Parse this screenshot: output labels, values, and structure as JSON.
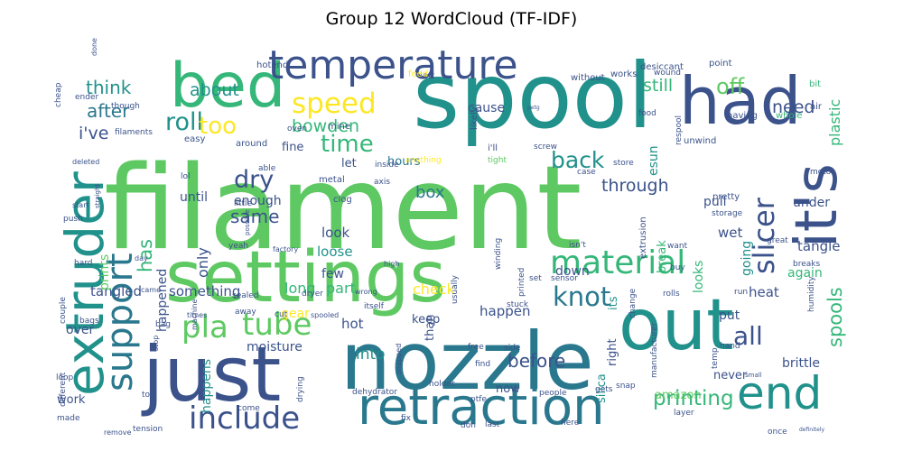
{
  "chart_data": {
    "type": "wordcloud",
    "title": "Group 12 WordCloud (TF-IDF)",
    "palette": "viridis",
    "background": "#ffffff",
    "words": [
      {
        "text": "filament",
        "weight": 100,
        "color": "#5ec962"
      },
      {
        "text": "spool",
        "weight": 86,
        "color": "#21918c"
      },
      {
        "text": "nozzle",
        "weight": 72,
        "color": "#2a788e"
      },
      {
        "text": "settings",
        "weight": 66,
        "color": "#5ec962"
      },
      {
        "text": "just",
        "weight": 66,
        "color": "#3b528b"
      },
      {
        "text": "out",
        "weight": 64,
        "color": "#21918c"
      },
      {
        "text": "had",
        "weight": 62,
        "color": "#3b528b"
      },
      {
        "text": "bed",
        "weight": 60,
        "color": "#35b779"
      },
      {
        "text": "extruder",
        "weight": 52,
        "color": "#21918c"
      },
      {
        "text": "it's",
        "weight": 52,
        "color": "#3b528b"
      },
      {
        "text": "retraction",
        "weight": 50,
        "color": "#2a788e"
      },
      {
        "text": "end",
        "weight": 45,
        "color": "#21918c"
      },
      {
        "text": "temperature",
        "weight": 40,
        "color": "#3b528b"
      },
      {
        "text": "support",
        "weight": 34,
        "color": "#2a788e"
      },
      {
        "text": "material",
        "weight": 32,
        "color": "#35b779"
      },
      {
        "text": "include",
        "weight": 30,
        "color": "#3b528b"
      },
      {
        "text": "tube",
        "weight": 29,
        "color": "#5ec962"
      },
      {
        "text": "slicer",
        "weight": 28,
        "color": "#3b528b"
      },
      {
        "text": "pla",
        "weight": 28,
        "color": "#5ec962"
      },
      {
        "text": "speed",
        "weight": 27,
        "color": "#fde725"
      },
      {
        "text": "knot",
        "weight": 25,
        "color": "#2a788e"
      },
      {
        "text": "all",
        "weight": 24,
        "color": "#3b528b"
      },
      {
        "text": "roll",
        "weight": 23,
        "color": "#21918c"
      },
      {
        "text": "dry",
        "weight": 23,
        "color": "#3b528b"
      },
      {
        "text": "too",
        "weight": 23,
        "color": "#fde725"
      },
      {
        "text": "time",
        "weight": 22,
        "color": "#35b779"
      },
      {
        "text": "back",
        "weight": 21,
        "color": "#21918c"
      },
      {
        "text": "off",
        "weight": 21,
        "color": "#5ec962"
      },
      {
        "text": "printing",
        "weight": 20,
        "color": "#35b779"
      },
      {
        "text": "spools",
        "weight": 19,
        "color": "#35b779"
      },
      {
        "text": "has",
        "weight": 19,
        "color": "#35b779"
      },
      {
        "text": "same",
        "weight": 18,
        "color": "#3b528b"
      },
      {
        "text": "after",
        "weight": 18,
        "color": "#2a788e"
      },
      {
        "text": "think",
        "weight": 18,
        "color": "#21918c"
      },
      {
        "text": "bowden",
        "weight": 17,
        "color": "#35b779"
      },
      {
        "text": "about",
        "weight": 17,
        "color": "#21918c"
      },
      {
        "text": "i've",
        "weight": 17,
        "color": "#3b528b"
      },
      {
        "text": "before",
        "weight": 17,
        "color": "#3b528b"
      },
      {
        "text": "through",
        "weight": 16,
        "color": "#3b528b"
      },
      {
        "text": "need",
        "weight": 16,
        "color": "#3b528b"
      },
      {
        "text": "still",
        "weight": 16,
        "color": "#35b779"
      },
      {
        "text": "plastic",
        "weight": 14,
        "color": "#35b779"
      },
      {
        "text": "into",
        "weight": 15,
        "color": "#21918c"
      },
      {
        "text": "box",
        "weight": 15,
        "color": "#2a788e"
      },
      {
        "text": "only",
        "weight": 14,
        "color": "#3b528b"
      },
      {
        "text": "check",
        "weight": 14,
        "color": "#fde725"
      },
      {
        "text": "part",
        "weight": 14,
        "color": "#35b779"
      },
      {
        "text": "long",
        "weight": 14,
        "color": "#35b779"
      },
      {
        "text": "tangled",
        "weight": 13,
        "color": "#3b528b"
      },
      {
        "text": "something",
        "weight": 13,
        "color": "#3b528b"
      },
      {
        "text": "tangle",
        "weight": 13,
        "color": "#3b528b"
      },
      {
        "text": "wet",
        "weight": 13,
        "color": "#3b528b"
      },
      {
        "text": "heat",
        "weight": 13,
        "color": "#3b528b"
      },
      {
        "text": "again",
        "weight": 12,
        "color": "#35b779"
      },
      {
        "text": "going",
        "weight": 12,
        "color": "#21918c"
      },
      {
        "text": "looks",
        "weight": 12,
        "color": "#35b779"
      },
      {
        "text": "prints",
        "weight": 12,
        "color": "#5ec962"
      },
      {
        "text": "loose",
        "weight": 13,
        "color": "#21918c"
      },
      {
        "text": "look",
        "weight": 13,
        "color": "#3b528b"
      },
      {
        "text": "happen",
        "weight": 13,
        "color": "#3b528b"
      },
      {
        "text": "happened",
        "weight": 12,
        "color": "#3b528b"
      },
      {
        "text": "happens",
        "weight": 12,
        "color": "#21918c"
      },
      {
        "text": "enough",
        "weight": 12,
        "color": "#3b528b"
      },
      {
        "text": "few",
        "weight": 13,
        "color": "#3b528b"
      },
      {
        "text": "down",
        "weight": 13,
        "color": "#3b528b"
      },
      {
        "text": "cause",
        "weight": 12,
        "color": "#3b528b"
      },
      {
        "text": "pull",
        "weight": 12,
        "color": "#3b528b"
      },
      {
        "text": "under",
        "weight": 12,
        "color": "#3b528b"
      },
      {
        "text": "esun",
        "weight": 12,
        "color": "#21918c"
      },
      {
        "text": "hours",
        "weight": 11,
        "color": "#2a788e"
      },
      {
        "text": "let",
        "weight": 11,
        "color": "#3b528b"
      },
      {
        "text": "until",
        "weight": 12,
        "color": "#3b528b"
      },
      {
        "text": "fine",
        "weight": 11,
        "color": "#3b528b"
      },
      {
        "text": "put",
        "weight": 12,
        "color": "#3b528b"
      },
      {
        "text": "break",
        "weight": 11,
        "color": "#35b779"
      },
      {
        "text": "never",
        "weight": 12,
        "color": "#3b528b"
      },
      {
        "text": "brittle",
        "weight": 12,
        "color": "#3b528b"
      },
      {
        "text": "hot",
        "weight": 12,
        "color": "#3b528b"
      },
      {
        "text": "gear",
        "weight": 12,
        "color": "#fde725"
      },
      {
        "text": "over",
        "weight": 12,
        "color": "#3b528b"
      },
      {
        "text": "moisture",
        "weight": 12,
        "color": "#3b528b"
      },
      {
        "text": "keep",
        "weight": 11,
        "color": "#3b528b"
      },
      {
        "text": "right",
        "weight": 11,
        "color": "#3b528b"
      },
      {
        "text": "its",
        "weight": 11,
        "color": "#21918c"
      },
      {
        "text": "silica",
        "weight": 11,
        "color": "#21918c"
      },
      {
        "text": "now",
        "weight": 11,
        "color": "#3b528b"
      },
      {
        "text": "amazon",
        "weight": 11,
        "color": "#5ec962"
      },
      {
        "text": "work",
        "weight": 11,
        "color": "#3b528b"
      },
      {
        "text": "than",
        "weight": 11,
        "color": "#3b528b"
      },
      {
        "text": "extrusion",
        "weight": 9,
        "color": "#3b528b"
      },
      {
        "text": "hotend",
        "weight": 9,
        "color": "#3b528b"
      },
      {
        "text": "desiccant",
        "weight": 9,
        "color": "#3b528b"
      },
      {
        "text": "point",
        "weight": 9,
        "color": "#3b528b"
      },
      {
        "text": "bit",
        "weight": 9,
        "color": "#35b779"
      },
      {
        "text": "air",
        "weight": 9,
        "color": "#3b528b"
      },
      {
        "text": "whole",
        "weight": 9,
        "color": "#35b779"
      },
      {
        "text": "motor",
        "weight": 8,
        "color": "#3b528b"
      },
      {
        "text": "food",
        "weight": 8,
        "color": "#3b528b"
      },
      {
        "text": "unwind",
        "weight": 9,
        "color": "#3b528b"
      },
      {
        "text": "having",
        "weight": 9,
        "color": "#3b528b"
      },
      {
        "text": "respool",
        "weight": 8,
        "color": "#3b528b"
      },
      {
        "text": "without",
        "weight": 9,
        "color": "#3b528b"
      },
      {
        "text": "works",
        "weight": 9,
        "color": "#3b528b"
      },
      {
        "text": "wound",
        "weight": 8,
        "color": "#3b528b"
      },
      {
        "text": "left",
        "weight": 9,
        "color": "#3b528b"
      },
      {
        "text": "feed",
        "weight": 9,
        "color": "#fde725"
      },
      {
        "text": "likely",
        "weight": 9,
        "color": "#3b528b"
      },
      {
        "text": "mine",
        "weight": 9,
        "color": "#3b528b"
      },
      {
        "text": "oven",
        "weight": 8,
        "color": "#3b528b"
      },
      {
        "text": "around",
        "weight": 9,
        "color": "#3b528b"
      },
      {
        "text": "easy",
        "weight": 9,
        "color": "#3b528b"
      },
      {
        "text": "able",
        "weight": 8,
        "color": "#3b528b"
      },
      {
        "text": "metal",
        "weight": 9,
        "color": "#3b528b"
      },
      {
        "text": "clog",
        "weight": 9,
        "color": "#3b528b"
      },
      {
        "text": "inside",
        "weight": 8,
        "color": "#3b528b"
      },
      {
        "text": "anything",
        "weight": 8,
        "color": "#fde725"
      },
      {
        "text": "axis",
        "weight": 8,
        "color": "#3b528b"
      },
      {
        "text": "i'll",
        "weight": 9,
        "color": "#3b528b"
      },
      {
        "text": "screw",
        "weight": 8,
        "color": "#3b528b"
      },
      {
        "text": "tight",
        "weight": 8,
        "color": "#5ec962"
      },
      {
        "text": "store",
        "weight": 8,
        "color": "#3b528b"
      },
      {
        "text": "case",
        "weight": 8,
        "color": "#3b528b"
      },
      {
        "text": "pretty",
        "weight": 9,
        "color": "#3b528b"
      },
      {
        "text": "storage",
        "weight": 8,
        "color": "#3b528b"
      },
      {
        "text": "great",
        "weight": 8,
        "color": "#3b528b"
      },
      {
        "text": "winding",
        "weight": 8,
        "color": "#3b528b"
      },
      {
        "text": "printed",
        "weight": 8,
        "color": "#3b528b"
      },
      {
        "text": "usually",
        "weight": 8,
        "color": "#3b528b"
      },
      {
        "text": "change",
        "weight": 8,
        "color": "#3b528b"
      },
      {
        "text": "buy",
        "weight": 8,
        "color": "#3b528b"
      },
      {
        "text": "want",
        "weight": 8,
        "color": "#3b528b"
      },
      {
        "text": "isn't",
        "weight": 8,
        "color": "#3b528b"
      },
      {
        "text": "set",
        "weight": 8,
        "color": "#3b528b"
      },
      {
        "text": "sensor",
        "weight": 8,
        "color": "#3b528b"
      },
      {
        "text": "rolls",
        "weight": 8,
        "color": "#3b528b"
      },
      {
        "text": "high",
        "weight": 8,
        "color": "#3b528b"
      },
      {
        "text": "breaks",
        "weight": 8,
        "color": "#3b528b"
      },
      {
        "text": "humidity",
        "weight": 8,
        "color": "#3b528b"
      },
      {
        "text": "run",
        "weight": 8,
        "color": "#3b528b"
      },
      {
        "text": "stuck",
        "weight": 8,
        "color": "#3b528b"
      },
      {
        "text": "manufacturer",
        "weight": 8,
        "color": "#3b528b"
      },
      {
        "text": "hand",
        "weight": 8,
        "color": "#3b528b"
      },
      {
        "text": "temp",
        "weight": 8,
        "color": "#3b528b"
      },
      {
        "text": "small",
        "weight": 6,
        "color": "#3b528b"
      },
      {
        "text": "once",
        "weight": 8,
        "color": "#3b528b"
      },
      {
        "text": "definitely",
        "weight": 6,
        "color": "#3b528b"
      },
      {
        "text": "layer",
        "weight": 8,
        "color": "#3b528b"
      },
      {
        "text": "here",
        "weight": 8,
        "color": "#3b528b"
      },
      {
        "text": "gets",
        "weight": 8,
        "color": "#3b528b"
      },
      {
        "text": "snap",
        "weight": 8,
        "color": "#3b528b"
      },
      {
        "text": "people",
        "weight": 8,
        "color": "#3b528b"
      },
      {
        "text": "last",
        "weight": 8,
        "color": "#3b528b"
      },
      {
        "text": "don",
        "weight": 8,
        "color": "#3b528b"
      },
      {
        "text": "fix",
        "weight": 8,
        "color": "#3b528b"
      },
      {
        "text": "holder",
        "weight": 8,
        "color": "#3b528b"
      },
      {
        "text": "dehydrator",
        "weight": 8,
        "color": "#3b528b"
      },
      {
        "text": "drying",
        "weight": 8,
        "color": "#3b528b"
      },
      {
        "text": "snapped",
        "weight": 8,
        "color": "#3b528b"
      },
      {
        "text": "ptfe",
        "weight": 8,
        "color": "#3b528b"
      },
      {
        "text": "find",
        "weight": 8,
        "color": "#3b528b"
      },
      {
        "text": "side",
        "weight": 8,
        "color": "#3b528b"
      },
      {
        "text": "free",
        "weight": 8,
        "color": "#3b528b"
      },
      {
        "text": "wrong",
        "weight": 7,
        "color": "#3b528b"
      },
      {
        "text": "spooled",
        "weight": 8,
        "color": "#3b528b"
      },
      {
        "text": "cut",
        "weight": 8,
        "color": "#3b528b"
      },
      {
        "text": "sealed",
        "weight": 8,
        "color": "#3b528b"
      },
      {
        "text": "dryer",
        "weight": 8,
        "color": "#3b528b"
      },
      {
        "text": "itself",
        "weight": 8,
        "color": "#3b528b"
      },
      {
        "text": "away",
        "weight": 8,
        "color": "#3b528b"
      },
      {
        "text": "come",
        "weight": 8,
        "color": "#3b528b"
      },
      {
        "text": "tension",
        "weight": 8,
        "color": "#3b528b"
      },
      {
        "text": "remove",
        "weight": 7,
        "color": "#3b528b"
      },
      {
        "text": "made",
        "weight": 8,
        "color": "#3b528b"
      },
      {
        "text": "top",
        "weight": 8,
        "color": "#3b528b"
      },
      {
        "text": "bags",
        "weight": 8,
        "color": "#3b528b"
      },
      {
        "text": "bag",
        "weight": 8,
        "color": "#3b528b"
      },
      {
        "text": "times",
        "weight": 8,
        "color": "#3b528b"
      },
      {
        "text": "stop",
        "weight": 7,
        "color": "#3b528b"
      },
      {
        "text": "machine",
        "weight": 8,
        "color": "#3b528b"
      },
      {
        "text": "came",
        "weight": 7,
        "color": "#3b528b"
      },
      {
        "text": "day",
        "weight": 7,
        "color": "#3b528b"
      },
      {
        "text": "hard",
        "weight": 8,
        "color": "#3b528b"
      },
      {
        "text": "couple",
        "weight": 8,
        "color": "#3b528b"
      },
      {
        "text": "push",
        "weight": 8,
        "color": "#3b528b"
      },
      {
        "text": "start",
        "weight": 7,
        "color": "#3b528b"
      },
      {
        "text": "different",
        "weight": 8,
        "color": "#3b528b"
      },
      {
        "text": "loop",
        "weight": 8,
        "color": "#3b528b"
      },
      {
        "text": "deleted",
        "weight": 7,
        "color": "#3b528b"
      },
      {
        "text": "straight",
        "weight": 6,
        "color": "#3b528b"
      },
      {
        "text": "factory",
        "weight": 7,
        "color": "#3b528b"
      },
      {
        "text": "possible",
        "weight": 6,
        "color": "#3b528b"
      },
      {
        "text": "yeah",
        "weight": 8,
        "color": "#3b528b"
      },
      {
        "text": "little",
        "weight": 8,
        "color": "#3b528b"
      },
      {
        "text": "lol",
        "weight": 8,
        "color": "#3b528b"
      },
      {
        "text": "filaments",
        "weight": 8,
        "color": "#3b528b"
      },
      {
        "text": "though",
        "weight": 8,
        "color": "#3b528b"
      },
      {
        "text": "ender",
        "weight": 8,
        "color": "#3b528b"
      },
      {
        "text": "cheap",
        "weight": 8,
        "color": "#3b528b"
      },
      {
        "text": "done",
        "weight": 7,
        "color": "#3b528b"
      },
      {
        "text": "petg",
        "weight": 5,
        "color": "#3b528b"
      }
    ]
  }
}
